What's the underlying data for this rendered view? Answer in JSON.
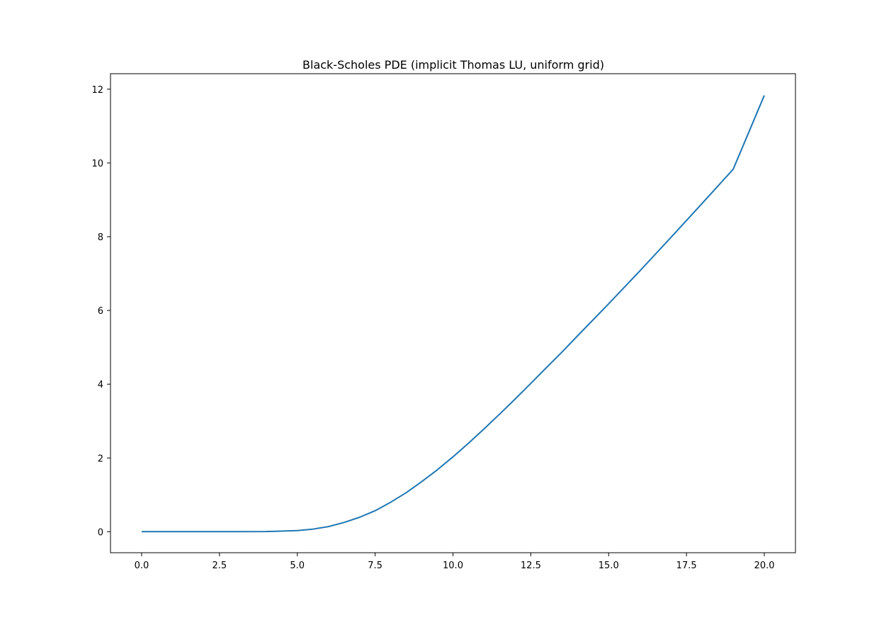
{
  "chart_data": {
    "type": "line",
    "title": "Black-Scholes PDE (implicit Thomas LU, uniform grid)",
    "xlabel": "",
    "ylabel": "",
    "xlim": [
      -1,
      21
    ],
    "ylim": [
      -0.57,
      12.42
    ],
    "xticks": [
      0,
      2.5,
      5,
      7.5,
      10,
      12.5,
      15,
      17.5,
      20
    ],
    "xtick_labels": [
      "0.0",
      "2.5",
      "5.0",
      "7.5",
      "10.0",
      "12.5",
      "15.0",
      "17.5",
      "20.0"
    ],
    "yticks": [
      0,
      2,
      4,
      6,
      8,
      10,
      12
    ],
    "ytick_labels": [
      "0",
      "2",
      "4",
      "6",
      "8",
      "10",
      "12"
    ],
    "grid": false,
    "series": [
      {
        "color": "#1f77b4",
        "x": [
          0,
          1,
          2,
          3,
          4,
          5,
          5.5,
          6,
          6.5,
          7,
          7.5,
          8,
          8.5,
          9,
          9.5,
          10,
          10.5,
          11,
          11.5,
          12,
          12.5,
          13,
          13.5,
          14,
          15,
          16,
          17,
          18,
          19,
          20
        ],
        "y": [
          0,
          0,
          0,
          0,
          0.005,
          0.03,
          0.07,
          0.14,
          0.25,
          0.39,
          0.57,
          0.8,
          1.06,
          1.36,
          1.68,
          2.03,
          2.4,
          2.79,
          3.19,
          3.6,
          4.02,
          4.45,
          4.87,
          5.31,
          6.18,
          7.07,
          7.98,
          8.9,
          9.83,
          11.83
        ]
      }
    ]
  }
}
